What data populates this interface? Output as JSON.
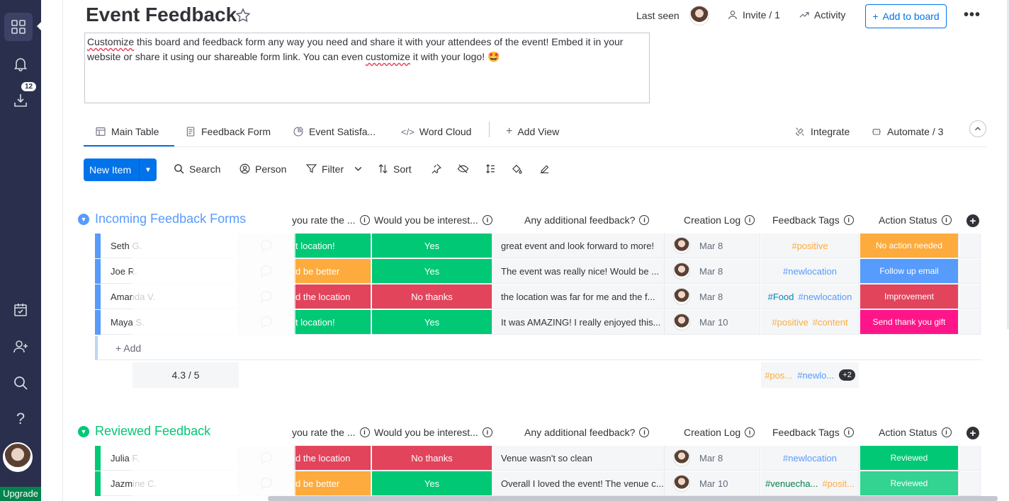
{
  "rail": {
    "badge": "12",
    "upgrade": "Upgrade"
  },
  "header": {
    "title": "Event Feedback",
    "last_seen": "Last seen",
    "invite": "Invite / 1",
    "activity": "Activity",
    "add_to_board": "Add to board"
  },
  "description": {
    "part1": "Customize",
    "part2": " this board and feedback form any way you need and share it with your attendees of the event! Embed it in your website or share it using our shareable form link. You can even ",
    "part3": "customize",
    "part4": " it with your logo! 🤩"
  },
  "tabs": {
    "main_table": "Main Table",
    "feedback_form": "Feedback Form",
    "event_satisfaction": "Event Satisfa...",
    "word_cloud": "Word Cloud",
    "add_view": "Add View",
    "integrate": "Integrate",
    "automate": "Automate / 3"
  },
  "toolbar": {
    "new_item": "New Item",
    "search": "Search",
    "person": "Person",
    "filter": "Filter",
    "sort": "Sort"
  },
  "columns": {
    "rate": "you rate the ...",
    "interest": "Would you be interest...",
    "additional": "Any additional feedback?",
    "creation_log": "Creation Log",
    "tags": "Feedback Tags",
    "action": "Action Status"
  },
  "colors": {
    "blue": "#579bfc",
    "green": "#00c875",
    "orange": "#fdab3d",
    "red": "#e2445c",
    "pink": "#ff158a",
    "sky": "#579bfc",
    "yes": "#00c875"
  },
  "group1": {
    "title": "Incoming Feedback Forms",
    "color": "#579bfc",
    "add": "+ Add",
    "rating_summary": "4.3  / 5",
    "tags_summary": [
      "#pos...",
      "#newlo..."
    ],
    "tags_more": "+2",
    "rows": [
      {
        "name": "Seth G.",
        "rate": "t location!",
        "rate_color": "#00c875",
        "interest": "Yes",
        "interest_color": "#00c875",
        "feedback": "great event and look forward to more!",
        "date": "Mar 8",
        "tags": [
          {
            "t": "#positive",
            "c": "#fdab3d"
          }
        ],
        "action": "No action needed",
        "action_color": "#fdab3d"
      },
      {
        "name": "Joe R.",
        "rate": "d be better",
        "rate_color": "#fdab3d",
        "interest": "Yes",
        "interest_color": "#00c875",
        "feedback": "The event was really nice! Would be ...",
        "date": "Mar 8",
        "tags": [
          {
            "t": "#newlocation",
            "c": "#579bfc"
          }
        ],
        "action": "Follow up email",
        "action_color": "#579bfc"
      },
      {
        "name": "Amanda V.",
        "rate": "d the location",
        "rate_color": "#e2445c",
        "interest": "No thanks",
        "interest_color": "#e2445c",
        "feedback": "the location was far for me and the f...",
        "date": "Mar 8",
        "tags": [
          {
            "t": "#Food",
            "c": "#0086c0"
          },
          {
            "t": "#newlocation",
            "c": "#579bfc"
          }
        ],
        "action": "Improvement",
        "action_color": "#e2445c"
      },
      {
        "name": "Maya S.",
        "rate": "t location!",
        "rate_color": "#00c875",
        "interest": "Yes",
        "interest_color": "#00c875",
        "feedback": "It was AMAZING! I really enjoyed this...",
        "date": "Mar 10",
        "tags": [
          {
            "t": "#positive",
            "c": "#fdab3d"
          },
          {
            "t": "#content",
            "c": "#fdab3d"
          }
        ],
        "action": "Send thank you gift",
        "action_color": "#ff158a"
      }
    ]
  },
  "group2": {
    "title": "Reviewed Feedback",
    "color": "#00c875",
    "rows": [
      {
        "name": "Julia F.",
        "rate": "d the location",
        "rate_color": "#e2445c",
        "interest": "No thanks",
        "interest_color": "#e2445c",
        "feedback": "Venue wasn't so clean",
        "date": "Mar 8",
        "tags": [
          {
            "t": "#newlocation",
            "c": "#579bfc"
          }
        ],
        "action": "Reviewed",
        "action_color": "#00c875"
      },
      {
        "name": "Jazmine C.",
        "rate": "d be better",
        "rate_color": "#fdab3d",
        "interest": "Yes",
        "interest_color": "#00c875",
        "feedback": "Overall I loved the event! The venue c...",
        "date": "Mar 10",
        "tags": [
          {
            "t": "#venuecha...",
            "c": "#037f4c"
          },
          {
            "t": "#posit...",
            "c": "#fdab3d"
          }
        ],
        "action": "Reviewed",
        "action_color": "#33d391"
      }
    ]
  }
}
